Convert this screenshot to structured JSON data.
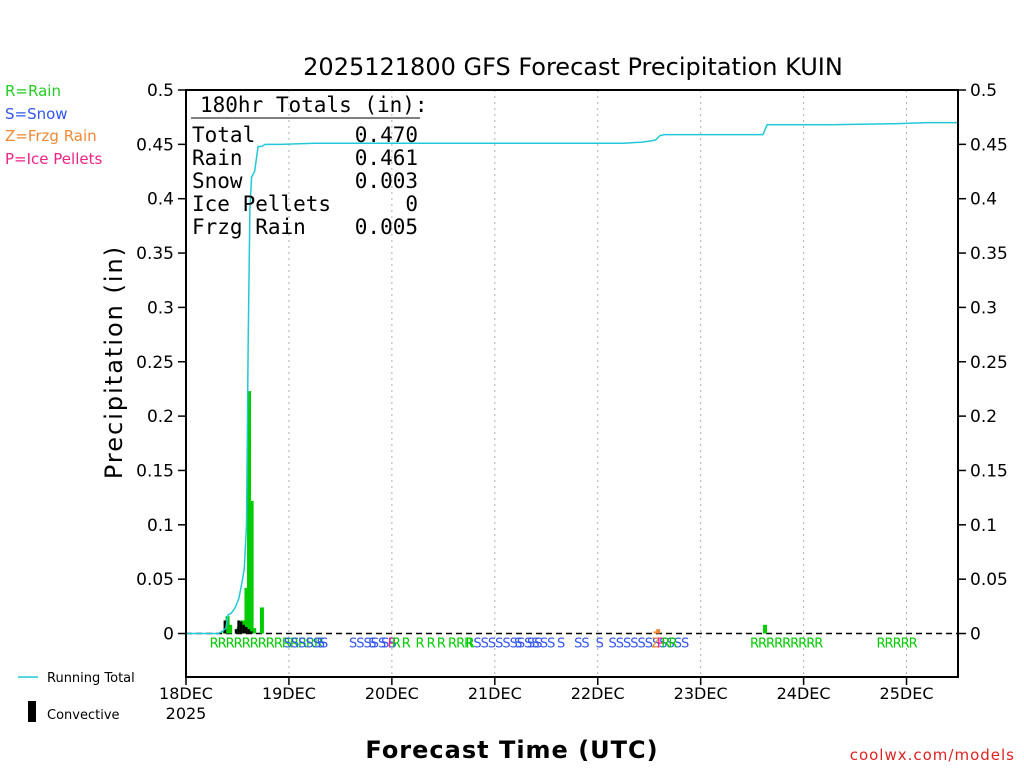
{
  "chart_data": {
    "type": "bar",
    "title": "2025121800 GFS Forecast Precipitation KUIN",
    "xlabel": "Forecast Time (UTC)",
    "ylabel": "Precipitation (in)",
    "ylim": [
      -0.04,
      0.5
    ],
    "xlim_hours": [
      0,
      180
    ],
    "yticks": [
      0,
      0.05,
      0.1,
      0.15,
      0.2,
      0.25,
      0.3,
      0.35,
      0.4,
      0.45,
      0.5
    ],
    "ytick_labels": [
      "0",
      "0.05",
      "0.1",
      "0.15",
      "0.2",
      "0.25",
      "0.3",
      "0.35",
      "0.4",
      "0.45",
      "0.5"
    ],
    "xticks": [
      {
        "hour": 0,
        "label": "18DEC",
        "sublabel": "2025"
      },
      {
        "hour": 24,
        "label": "19DEC"
      },
      {
        "hour": 48,
        "label": "20DEC"
      },
      {
        "hour": 72,
        "label": "21DEC"
      },
      {
        "hour": 96,
        "label": "22DEC"
      },
      {
        "hour": 120,
        "label": "23DEC"
      },
      {
        "hour": 144,
        "label": "24DEC"
      },
      {
        "hour": 168,
        "label": "25DEC"
      }
    ],
    "totals_box": {
      "header": "180hr Totals (in):",
      "rows": [
        {
          "label": "Total",
          "value": "0.470"
        },
        {
          "label": "Rain",
          "value": "0.461"
        },
        {
          "label": "Snow",
          "value": "0.003"
        },
        {
          "label": "Ice Pellets",
          "value": "0"
        },
        {
          "label": "Frzg Rain",
          "value": "0.005"
        }
      ]
    },
    "type_legend": [
      {
        "text": "R=Rain",
        "color": "#22cc22"
      },
      {
        "text": "S=Snow",
        "color": "#3355ee"
      },
      {
        "text": "Z=Frzg Rain",
        "color": "#ee8833"
      },
      {
        "text": "P=Ice Pellets",
        "color": "#ee2288"
      }
    ],
    "series_legend": [
      {
        "name": "Running Total",
        "color": "#22c8d8"
      },
      {
        "name": "Convective",
        "color": "#000000"
      }
    ],
    "colors": {
      "rain": "#00cc00",
      "snow": "#3355ee",
      "frzg": "#ee8833",
      "ice": "#ee2288",
      "convective": "#000000",
      "running_total": "#22c8d8"
    },
    "bars": [
      {
        "hour": 9,
        "rain": 0.003
      },
      {
        "hour": 9.7,
        "rain": 0.016,
        "conv": 0.012
      },
      {
        "hour": 10.3,
        "rain": 0.008
      },
      {
        "hour": 12.3,
        "rain": 0.006,
        "conv": 0.004
      },
      {
        "hour": 12.9,
        "rain": 0.012,
        "conv": 0.012
      },
      {
        "hour": 13.5,
        "rain": 0.012,
        "conv": 0.011
      },
      {
        "hour": 14.1,
        "rain": 0.042,
        "conv": 0.008
      },
      {
        "hour": 14.7,
        "rain": 0.223,
        "conv": 0.006
      },
      {
        "hour": 15.3,
        "rain": 0.122,
        "conv": 0.004
      },
      {
        "hour": 15.9,
        "rain": 0.005,
        "conv": 0.002
      },
      {
        "hour": 17.7,
        "rain": 0.024
      },
      {
        "hour": 109.5,
        "frzg": 0.002
      },
      {
        "hour": 110.1,
        "frzg": 0.004
      },
      {
        "hour": 135,
        "rain": 0.008
      }
    ],
    "running_total": [
      [
        0,
        0
      ],
      [
        7.5,
        0
      ],
      [
        8.5,
        0.002
      ],
      [
        9.3,
        0.005
      ],
      [
        9.8,
        0.017
      ],
      [
        10.6,
        0.019
      ],
      [
        11.5,
        0.024
      ],
      [
        12.3,
        0.032
      ],
      [
        13.0,
        0.046
      ],
      [
        13.6,
        0.06
      ],
      [
        14.1,
        0.1
      ],
      [
        14.5,
        0.27
      ],
      [
        14.9,
        0.39
      ],
      [
        15.3,
        0.42
      ],
      [
        16.0,
        0.425
      ],
      [
        16.8,
        0.448
      ],
      [
        17.6,
        0.448
      ],
      [
        18.5,
        0.45
      ],
      [
        22,
        0.45
      ],
      [
        30,
        0.451
      ],
      [
        60,
        0.451
      ],
      [
        90,
        0.451
      ],
      [
        102,
        0.451
      ],
      [
        106,
        0.452
      ],
      [
        108,
        0.453
      ],
      [
        109.5,
        0.454
      ],
      [
        110.5,
        0.458
      ],
      [
        111.5,
        0.459
      ],
      [
        133,
        0.459
      ],
      [
        134.5,
        0.459
      ],
      [
        135.5,
        0.468
      ],
      [
        150,
        0.468
      ],
      [
        165,
        0.469
      ],
      [
        173,
        0.47
      ],
      [
        180,
        0.47
      ]
    ],
    "type_codes": [
      {
        "hour": 5.5,
        "text": "RRRRRRRRRRRRRR",
        "kind": "rain"
      },
      {
        "hour": 22.8,
        "text": "SSSSSS",
        "kind": "snow"
      },
      {
        "hour": 30.5,
        "text": "S",
        "kind": "snow"
      },
      {
        "hour": 38,
        "text": "SSSSS",
        "kind": "snow"
      },
      {
        "hour": 42.5,
        "text": "S",
        "kind": "snow"
      },
      {
        "hour": 45.5,
        "text": "SS",
        "kind": "snow"
      },
      {
        "hour": 47,
        "text": "P",
        "kind": "ice"
      },
      {
        "hour": 48,
        "text": "R",
        "kind": "rain"
      },
      {
        "hour": 50.3,
        "text": "R",
        "kind": "rain"
      },
      {
        "hour": 53.5,
        "text": "R R",
        "kind": "rain"
      },
      {
        "hour": 58.5,
        "text": "R RRR",
        "kind": "rain"
      },
      {
        "hour": 65.2,
        "text": "R",
        "kind": "rain"
      },
      {
        "hour": 67,
        "text": "SSSSSSSSS",
        "kind": "snow"
      },
      {
        "hour": 76.5,
        "text": "S",
        "kind": "snow"
      },
      {
        "hour": 79.5,
        "text": "SS",
        "kind": "snow"
      },
      {
        "hour": 82.5,
        "text": "SS",
        "kind": "snow"
      },
      {
        "hour": 86.5,
        "text": "S",
        "kind": "snow"
      },
      {
        "hour": 90.5,
        "text": "SS",
        "kind": "snow"
      },
      {
        "hour": 95.5,
        "text": "S",
        "kind": "snow"
      },
      {
        "hour": 98.5,
        "text": "SSSSSSSSSSS",
        "kind": "snow"
      },
      {
        "hour": 108.5,
        "text": "Z",
        "kind": "frzg"
      },
      {
        "hour": 109.8,
        "text": "P",
        "kind": "ice"
      },
      {
        "hour": 110.8,
        "text": "R",
        "kind": "rain"
      },
      {
        "hour": 112.5,
        "text": "R",
        "kind": "rain"
      },
      {
        "hour": 131.5,
        "text": "RRRRRRRRR",
        "kind": "rain"
      },
      {
        "hour": 161,
        "text": "RRRRR",
        "kind": "rain"
      }
    ],
    "watermark": "coolwx.com/models"
  }
}
